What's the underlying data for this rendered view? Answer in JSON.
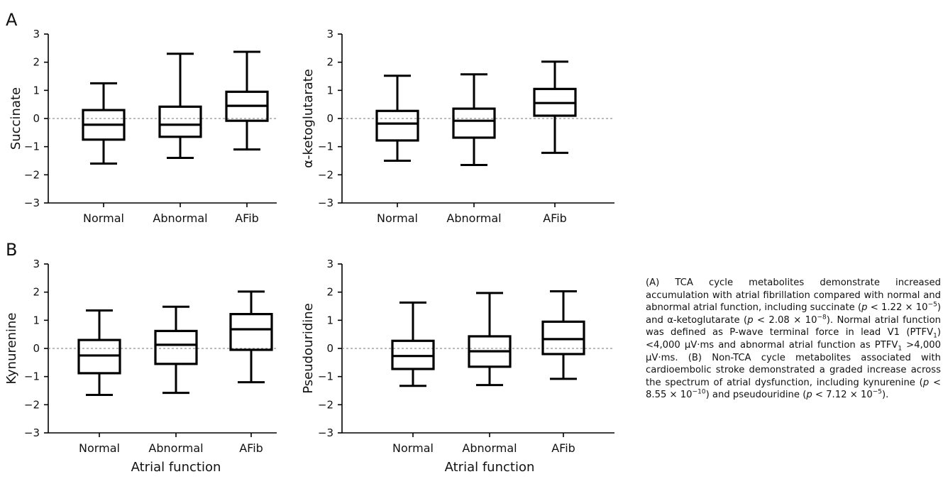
{
  "panel_labels": [
    "A",
    "B"
  ],
  "shared_xlabel": "Atrial function",
  "caption_html": "(A) TCA cycle metabolites demonstrate increased accumulation with atrial fibrillation compared with normal and abnormal atrial function, including succinate (<i>p</i> &lt; 1.22 × 10<sup>−5</sup>) and α-ketoglutarate (<i>p</i> &lt; 2.08 × 10<sup>−8</sup>). Normal atrial function was defined as P-wave terminal force in lead V1 (PTFV<sub>1</sub>) &lt;4,000 μV·ms and abnormal atrial function as PTFV<sub>1</sub> &gt;4,000 μV·ms. (B) Non-TCA cycle metabolites associated with cardioembolic stroke demonstrated a graded increase across the spectrum of atrial dysfunction, including kynurenine (<i>p</i> &lt; 8.55 × 10<sup>−10</sup>) and pseudouridine (<i>p</i> &lt; 7.12 × 10<sup>−5</sup>).",
  "chart_data": [
    {
      "type": "box",
      "panel": "A",
      "ylabel": "Succinate",
      "xlabel": "",
      "categories": [
        "Normal",
        "Abnormal",
        "AFib"
      ],
      "ylim": [
        -3,
        3
      ],
      "yticks": [
        -3,
        -2,
        -1,
        0,
        1,
        2,
        3
      ],
      "reference_line": 0,
      "boxes": [
        {
          "min": -1.6,
          "q1": -0.75,
          "median": -0.22,
          "q3": 0.3,
          "max": 1.25
        },
        {
          "min": -1.4,
          "q1": -0.65,
          "median": -0.22,
          "q3": 0.42,
          "max": 2.3
        },
        {
          "min": -1.1,
          "q1": -0.08,
          "median": 0.45,
          "q3": 0.95,
          "max": 2.37
        }
      ]
    },
    {
      "type": "box",
      "panel": "A",
      "ylabel": "α-ketoglutarate",
      "xlabel": "",
      "categories": [
        "Normal",
        "Abnormal",
        "AFib"
      ],
      "ylim": [
        -3,
        3
      ],
      "yticks": [
        -3,
        -2,
        -1,
        0,
        1,
        2,
        3
      ],
      "reference_line": 0,
      "boxes": [
        {
          "min": -1.5,
          "q1": -0.78,
          "median": -0.18,
          "q3": 0.27,
          "max": 1.52
        },
        {
          "min": -1.65,
          "q1": -0.68,
          "median": -0.08,
          "q3": 0.35,
          "max": 1.57
        },
        {
          "min": -1.22,
          "q1": 0.1,
          "median": 0.55,
          "q3": 1.05,
          "max": 2.02
        }
      ]
    },
    {
      "type": "box",
      "panel": "B",
      "ylabel": "Kynurenine",
      "xlabel": "Atrial function",
      "categories": [
        "Normal",
        "Abnormal",
        "AFib"
      ],
      "ylim": [
        -3,
        3
      ],
      "yticks": [
        -3,
        -2,
        -1,
        0,
        1,
        2,
        3
      ],
      "reference_line": 0,
      "boxes": [
        {
          "min": -1.65,
          "q1": -0.88,
          "median": -0.25,
          "q3": 0.3,
          "max": 1.35
        },
        {
          "min": -1.58,
          "q1": -0.55,
          "median": 0.13,
          "q3": 0.62,
          "max": 1.48
        },
        {
          "min": -1.2,
          "q1": -0.05,
          "median": 0.68,
          "q3": 1.22,
          "max": 2.02
        }
      ]
    },
    {
      "type": "box",
      "panel": "B",
      "ylabel": "Pseudouridine",
      "xlabel": "Atrial function",
      "categories": [
        "Normal",
        "Abnormal",
        "AFib"
      ],
      "ylim": [
        -3,
        3
      ],
      "yticks": [
        -3,
        -2,
        -1,
        0,
        1,
        2,
        3
      ],
      "reference_line": 0,
      "boxes": [
        {
          "min": -1.33,
          "q1": -0.73,
          "median": -0.27,
          "q3": 0.27,
          "max": 1.63
        },
        {
          "min": -1.3,
          "q1": -0.65,
          "median": -0.1,
          "q3": 0.43,
          "max": 1.97
        },
        {
          "min": -1.08,
          "q1": -0.2,
          "median": 0.33,
          "q3": 0.95,
          "max": 2.03
        }
      ]
    }
  ]
}
